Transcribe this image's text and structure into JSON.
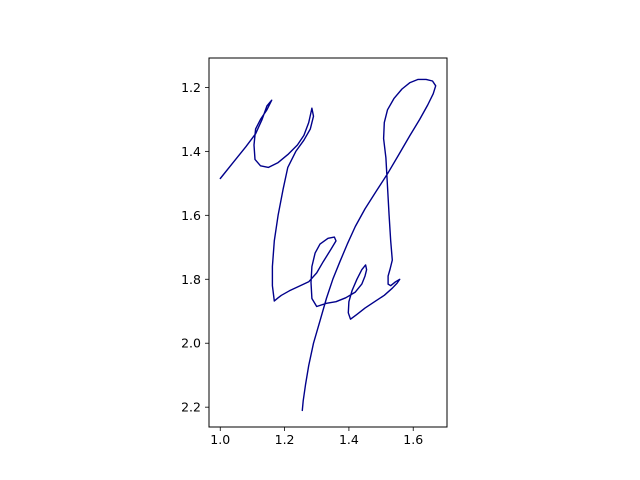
{
  "chart_data": {
    "type": "line",
    "title": "",
    "xlabel": "",
    "ylabel": "",
    "xlim": [
      0.965,
      1.705
    ],
    "ylim": [
      2.262,
      1.108
    ],
    "y_inverted": true,
    "grid": false,
    "xticks": [
      1.0,
      1.2,
      1.4,
      1.6
    ],
    "xtick_labels": [
      "1.0",
      "1.2",
      "1.4",
      "1.6"
    ],
    "yticks": [
      1.2,
      1.4,
      1.6,
      1.8,
      2.0,
      2.2
    ],
    "ytick_labels": [
      "1.2",
      "1.4",
      "1.6",
      "1.8",
      "2.0",
      "2.2"
    ],
    "line_color": "#00008b",
    "series": [
      {
        "points": [
          [
            1.0,
            1.485
          ],
          [
            1.04,
            1.435
          ],
          [
            1.08,
            1.385
          ],
          [
            1.11,
            1.345
          ],
          [
            1.13,
            1.3
          ],
          [
            1.145,
            1.258
          ],
          [
            1.16,
            1.24
          ],
          [
            1.145,
            1.27
          ],
          [
            1.125,
            1.3
          ],
          [
            1.11,
            1.33
          ],
          [
            1.105,
            1.38
          ],
          [
            1.108,
            1.425
          ],
          [
            1.125,
            1.445
          ],
          [
            1.15,
            1.45
          ],
          [
            1.18,
            1.435
          ],
          [
            1.21,
            1.41
          ],
          [
            1.24,
            1.38
          ],
          [
            1.26,
            1.35
          ],
          [
            1.275,
            1.31
          ],
          [
            1.282,
            1.278
          ],
          [
            1.285,
            1.265
          ],
          [
            1.29,
            1.29
          ],
          [
            1.28,
            1.33
          ],
          [
            1.26,
            1.365
          ],
          [
            1.235,
            1.4
          ],
          [
            1.21,
            1.45
          ],
          [
            1.195,
            1.52
          ],
          [
            1.18,
            1.6
          ],
          [
            1.168,
            1.68
          ],
          [
            1.162,
            1.76
          ],
          [
            1.162,
            1.82
          ],
          [
            1.168,
            1.868
          ],
          [
            1.18,
            1.858
          ],
          [
            1.19,
            1.85
          ],
          [
            1.215,
            1.836
          ],
          [
            1.245,
            1.822
          ],
          [
            1.275,
            1.808
          ],
          [
            1.3,
            1.78
          ],
          [
            1.32,
            1.745
          ],
          [
            1.345,
            1.705
          ],
          [
            1.36,
            1.68
          ],
          [
            1.355,
            1.668
          ],
          [
            1.335,
            1.672
          ],
          [
            1.31,
            1.69
          ],
          [
            1.295,
            1.718
          ],
          [
            1.285,
            1.76
          ],
          [
            1.282,
            1.81
          ],
          [
            1.285,
            1.86
          ],
          [
            1.3,
            1.885
          ],
          [
            1.33,
            1.875
          ],
          [
            1.36,
            1.87
          ],
          [
            1.39,
            1.858
          ],
          [
            1.42,
            1.84
          ],
          [
            1.44,
            1.815
          ],
          [
            1.45,
            1.79
          ],
          [
            1.455,
            1.77
          ],
          [
            1.452,
            1.755
          ],
          [
            1.44,
            1.77
          ],
          [
            1.425,
            1.8
          ],
          [
            1.41,
            1.835
          ],
          [
            1.4,
            1.87
          ],
          [
            1.398,
            1.905
          ],
          [
            1.405,
            1.925
          ],
          [
            1.425,
            1.91
          ],
          [
            1.45,
            1.89
          ],
          [
            1.48,
            1.87
          ],
          [
            1.51,
            1.85
          ],
          [
            1.535,
            1.828
          ],
          [
            1.55,
            1.812
          ],
          [
            1.558,
            1.8
          ],
          [
            1.545,
            1.808
          ],
          [
            1.53,
            1.82
          ],
          [
            1.522,
            1.815
          ],
          [
            1.522,
            1.79
          ],
          [
            1.528,
            1.768
          ],
          [
            1.535,
            1.74
          ],
          [
            1.53,
            1.68
          ],
          [
            1.525,
            1.6
          ],
          [
            1.52,
            1.51
          ],
          [
            1.515,
            1.42
          ],
          [
            1.508,
            1.36
          ],
          [
            1.51,
            1.31
          ],
          [
            1.52,
            1.27
          ],
          [
            1.54,
            1.235
          ],
          [
            1.565,
            1.205
          ],
          [
            1.59,
            1.185
          ],
          [
            1.615,
            1.175
          ],
          [
            1.64,
            1.175
          ],
          [
            1.66,
            1.18
          ],
          [
            1.67,
            1.195
          ],
          [
            1.662,
            1.22
          ],
          [
            1.645,
            1.255
          ],
          [
            1.62,
            1.3
          ],
          [
            1.59,
            1.35
          ],
          [
            1.555,
            1.41
          ],
          [
            1.52,
            1.47
          ],
          [
            1.485,
            1.525
          ],
          [
            1.45,
            1.58
          ],
          [
            1.42,
            1.635
          ],
          [
            1.395,
            1.69
          ],
          [
            1.372,
            1.745
          ],
          [
            1.35,
            1.8
          ],
          [
            1.33,
            1.86
          ],
          [
            1.31,
            1.93
          ],
          [
            1.29,
            2.0
          ],
          [
            1.275,
            2.07
          ],
          [
            1.265,
            2.13
          ],
          [
            1.258,
            2.18
          ],
          [
            1.255,
            2.21
          ]
        ]
      }
    ]
  }
}
